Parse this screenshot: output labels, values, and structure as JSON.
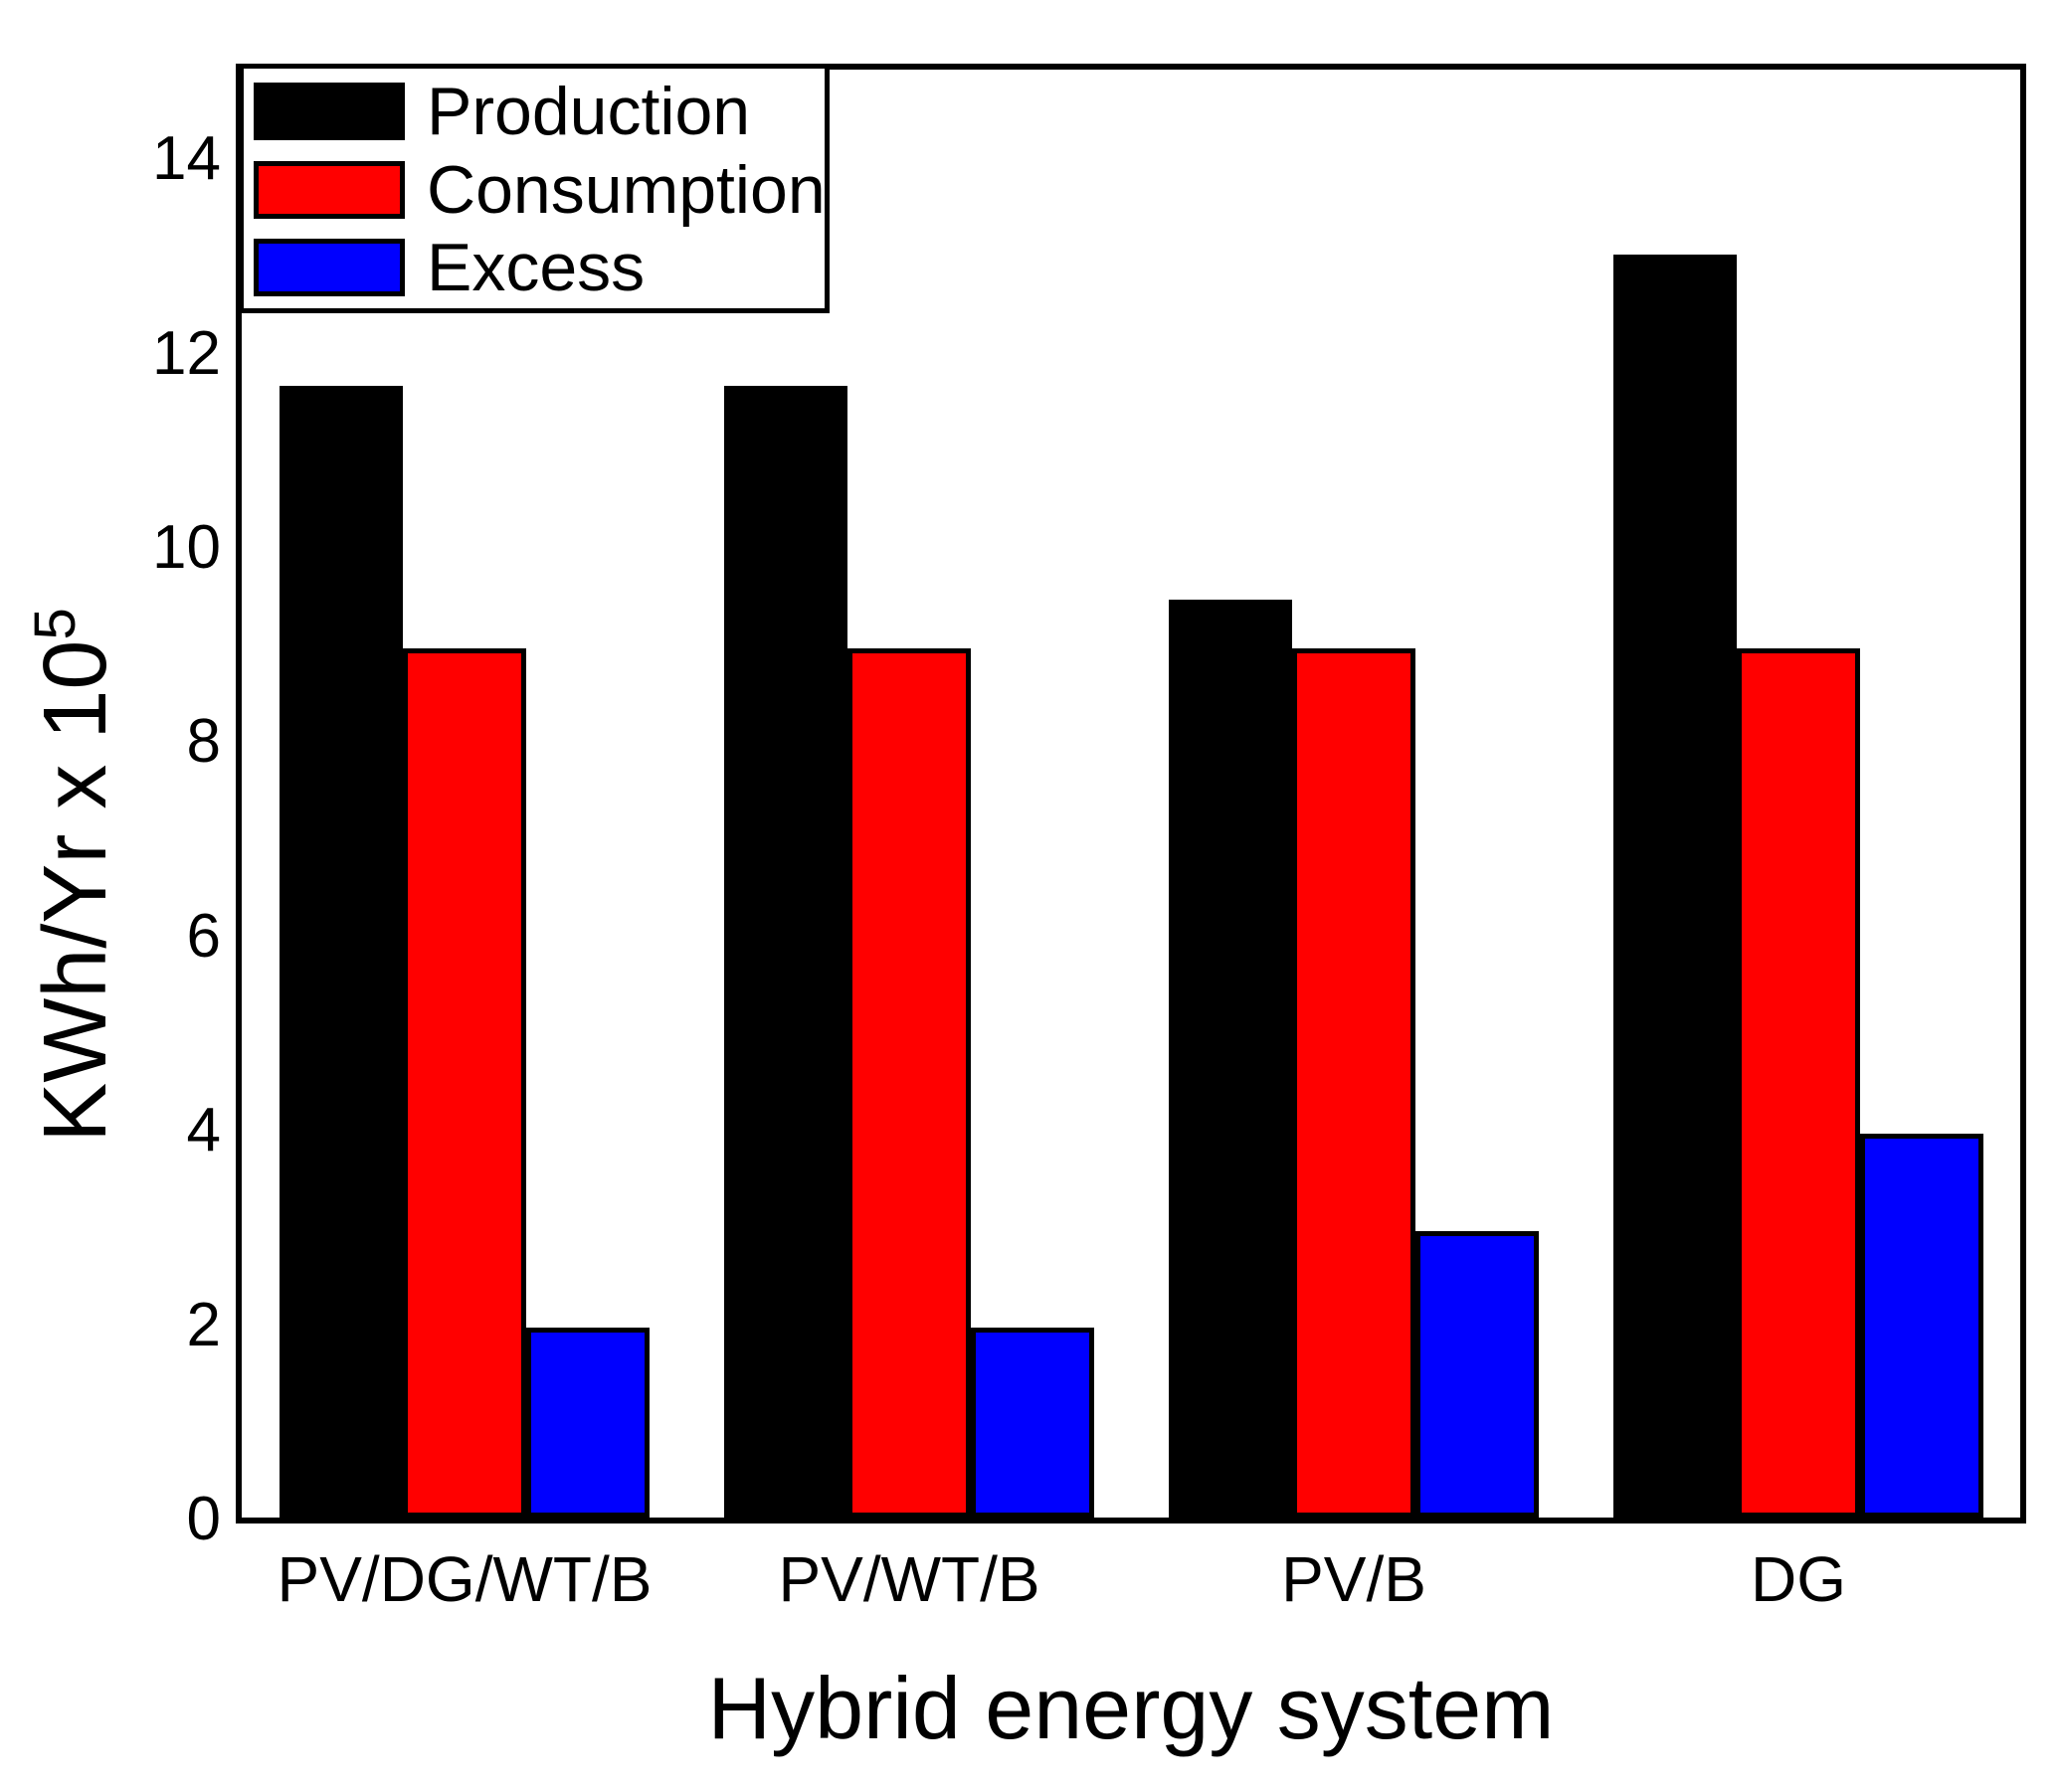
{
  "figure": {
    "background": "#ffffff",
    "axis_color": "#000000",
    "xaxis_title": "Hybrid energy system",
    "yaxis_title_main": "KWh/Yr x 10",
    "yaxis_title_sup": "5"
  },
  "legend": {
    "position": "top-left-inside",
    "entries": [
      {
        "label": "Production",
        "color": "#000000",
        "swatch_name": "production-swatch"
      },
      {
        "label": "Consumption",
        "color": "#ff0000",
        "swatch_name": "consumption-swatch"
      },
      {
        "label": "Excess",
        "color": "#0000ff",
        "swatch_name": "excess-swatch"
      }
    ]
  },
  "chart_data": {
    "type": "bar",
    "title": "",
    "xlabel": "Hybrid energy system",
    "ylabel": "KWh/Yr x 10^5",
    "categories": [
      "PV/DG/WT/B",
      "PV/WT/B",
      "PV/B",
      "DG"
    ],
    "series": [
      {
        "name": "Production",
        "color": "#000000",
        "values": [
          11.65,
          11.65,
          9.45,
          13.0
        ]
      },
      {
        "name": "Consumption",
        "color": "#ff0000",
        "values": [
          8.95,
          8.95,
          8.95,
          8.95
        ]
      },
      {
        "name": "Excess",
        "color": "#0000ff",
        "values": [
          1.95,
          1.95,
          2.95,
          3.95
        ]
      }
    ],
    "yticks": [
      0,
      2,
      4,
      6,
      8,
      10,
      12,
      14
    ],
    "ylim": [
      0,
      14.9
    ],
    "grid": false,
    "bar_outline_color": "#000000",
    "legend_position": "top-left-inside"
  }
}
